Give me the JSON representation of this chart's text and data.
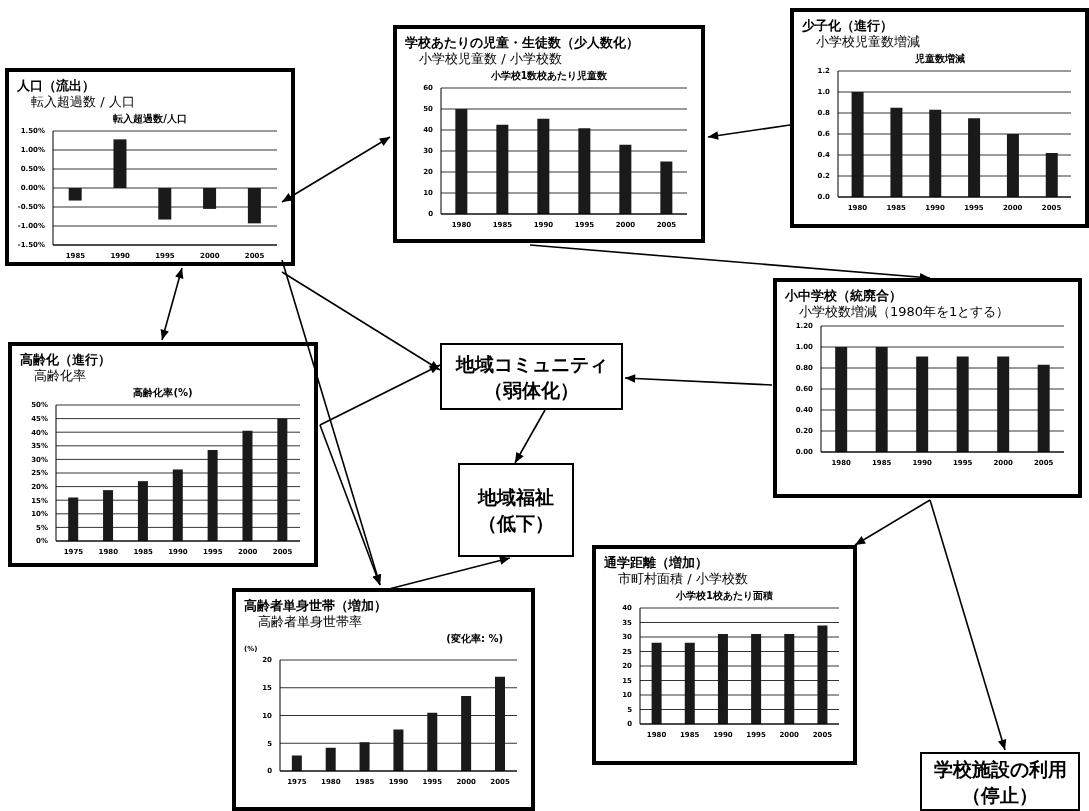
{
  "chart_data": [
    {
      "type": "bar",
      "title": "人口（流出）",
      "subtitle": "転入超過数 / 人口",
      "annotations": [
        "転入超過数/人口"
      ],
      "categories": [
        "1985",
        "1990",
        "1995",
        "2000",
        "2005"
      ],
      "values": [
        -0.33,
        1.28,
        -0.83,
        -0.55,
        -0.93
      ],
      "color": "#1a1a1a",
      "ylim": [
        -1.5,
        1.5
      ],
      "yticks": [
        {
          "value": -1.5,
          "label": "-1.50%"
        },
        {
          "value": -1,
          "label": "-1.00%"
        },
        {
          "value": -0.5,
          "label": "-0.50%"
        },
        {
          "value": 0,
          "label": "0.00%"
        },
        {
          "value": 0.5,
          "label": "0.50%"
        },
        {
          "value": 1,
          "label": "1.00%"
        },
        {
          "value": 1.5,
          "label": "1.50%"
        }
      ],
      "grid": "y"
    },
    {
      "type": "bar",
      "title": "学校あたりの児童・生徒数（少人数化）",
      "subtitle": "小学校児童数 / 小学校数",
      "annotations": [
        "小学校1数校あたり児童数"
      ],
      "categories": [
        "1980",
        "1985",
        "1990",
        "1995",
        "2000",
        "2005"
      ],
      "values": [
        50,
        42.5,
        45.3,
        40.8,
        33,
        25
      ],
      "color": "#1a1a1a",
      "ylim": [
        0,
        60
      ],
      "yticks": [
        0,
        10,
        20,
        30,
        40,
        50,
        60
      ],
      "grid": "y"
    },
    {
      "type": "bar",
      "title": "少子化（進行）",
      "subtitle": "小学校児童数増減",
      "annotations": [
        "児童数増減"
      ],
      "categories": [
        "1980",
        "1985",
        "1990",
        "1995",
        "2000",
        "2005"
      ],
      "values": [
        1.0,
        0.85,
        0.83,
        0.75,
        0.6,
        0.42
      ],
      "color": "#1a1a1a",
      "ylim": [
        0,
        1.2
      ],
      "yticks": [
        {
          "value": 0,
          "label": "0.0"
        },
        {
          "value": 0.2,
          "label": "0.2"
        },
        {
          "value": 0.4,
          "label": "0.4"
        },
        {
          "value": 0.6,
          "label": "0.6"
        },
        {
          "value": 0.8,
          "label": "0.8"
        },
        {
          "value": 1,
          "label": "1.0"
        },
        {
          "value": 1.2,
          "label": "1.2"
        }
      ],
      "grid": "y"
    },
    {
      "type": "bar",
      "title": "小中学校（統廃合）",
      "subtitle": "小学校数増減（1980年を1とする）",
      "categories": [
        "1980",
        "1985",
        "1990",
        "1995",
        "2000",
        "2005"
      ],
      "values": [
        1.0,
        1.0,
        0.91,
        0.91,
        0.91,
        0.83
      ],
      "color": "#1a1a1a",
      "ylim": [
        0,
        1.2
      ],
      "yticks": [
        {
          "value": 0,
          "label": "0.00"
        },
        {
          "value": 0.2,
          "label": "0.20"
        },
        {
          "value": 0.4,
          "label": "0.40"
        },
        {
          "value": 0.6,
          "label": "0.60"
        },
        {
          "value": 0.8,
          "label": "0.80"
        },
        {
          "value": 1,
          "label": "1.00"
        },
        {
          "value": 1.2,
          "label": "1.20"
        }
      ],
      "grid": "y"
    },
    {
      "type": "bar",
      "title": "高齢化（進行）",
      "subtitle": "高齢化率",
      "annotations": [
        "高齢化率(%)"
      ],
      "categories": [
        "1975",
        "1980",
        "1985",
        "1990",
        "1995",
        "2000",
        "2005"
      ],
      "values": [
        16,
        18.7,
        22,
        26.3,
        33.5,
        40.5,
        45
      ],
      "color": "#1a1a1a",
      "ylim": [
        0,
        50
      ],
      "yticks": [
        {
          "value": 0,
          "label": "0%"
        },
        {
          "value": 5,
          "label": "5%"
        },
        {
          "value": 10,
          "label": "10%"
        },
        {
          "value": 15,
          "label": "15%"
        },
        {
          "value": 20,
          "label": "20%"
        },
        {
          "value": 25,
          "label": "25%"
        },
        {
          "value": 30,
          "label": "30%"
        },
        {
          "value": 35,
          "label": "35%"
        },
        {
          "value": 40,
          "label": "40%"
        },
        {
          "value": 45,
          "label": "45%"
        },
        {
          "value": 50,
          "label": "50%"
        }
      ],
      "grid": "y"
    },
    {
      "type": "bar",
      "title": "高齢者単身世帯（増加）",
      "subtitle": "高齢者単身世帯率",
      "ylabel": "(%)",
      "annotations": [
        "(変化率: %)"
      ],
      "categories": [
        "1975",
        "1980",
        "1985",
        "1990",
        "1995",
        "2000",
        "2005"
      ],
      "values": [
        2.8,
        4.2,
        5.2,
        7.5,
        10.5,
        13.5,
        17
      ],
      "color": "#1a1a1a",
      "ylim": [
        0,
        20
      ],
      "yticks": [
        0,
        5,
        10,
        15,
        20
      ],
      "grid": "y"
    },
    {
      "type": "bar",
      "title": "通学距離（増加）",
      "subtitle": "市町村面積 / 小学校数",
      "annotations": [
        "小学校1校あたり面積"
      ],
      "categories": [
        "1980",
        "1985",
        "1990",
        "1995",
        "2000",
        "2005"
      ],
      "values": [
        28,
        28,
        31,
        31,
        31,
        34
      ],
      "color": "#1a1a1a",
      "ylim": [
        0,
        40
      ],
      "yticks": [
        0,
        5,
        10,
        15,
        20,
        25,
        30,
        35,
        40
      ],
      "grid": "y"
    },
    {
      "type": "other",
      "title": "地域コミュニティ",
      "subtitle": "（弱体化）"
    },
    {
      "type": "other",
      "title": "地域福祉",
      "subtitle": "（低下）"
    },
    {
      "type": "other",
      "title": "学校施設の利用",
      "subtitle": "（停止）"
    }
  ]
}
